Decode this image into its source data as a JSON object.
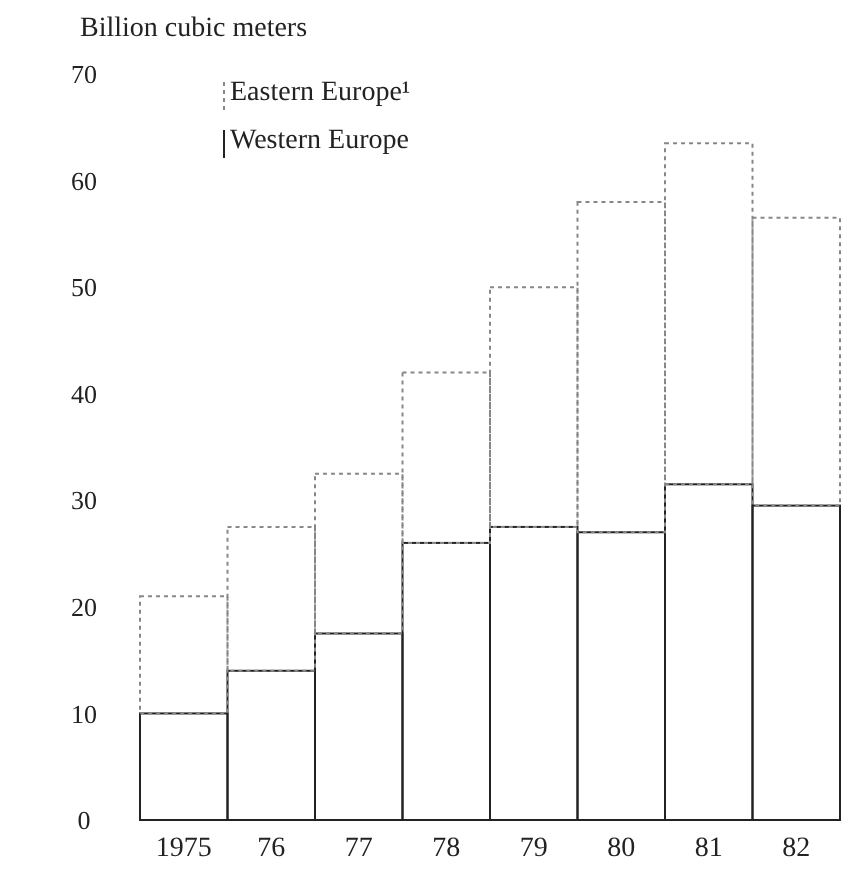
{
  "chart_data": {
    "type": "bar",
    "stacked": true,
    "ylabel": "Billion cubic meters",
    "categories": [
      "1975",
      "76",
      "77",
      "78",
      "79",
      "80",
      "81",
      "82"
    ],
    "series": [
      {
        "name": "Western Europe",
        "color": "#222222",
        "line_style": "solid",
        "values": [
          10,
          14,
          17.5,
          26,
          27.5,
          27,
          31.5,
          29.5
        ]
      },
      {
        "name": "Eastern Europe¹",
        "color": "#888888",
        "line_style": "dotted",
        "values": [
          11,
          13.5,
          15,
          16,
          22.5,
          31,
          32,
          27
        ]
      }
    ],
    "ylim": [
      0,
      70
    ],
    "yticks": [
      0,
      10,
      20,
      30,
      40,
      50,
      60,
      70
    ],
    "grid": false,
    "legend": "top left"
  }
}
